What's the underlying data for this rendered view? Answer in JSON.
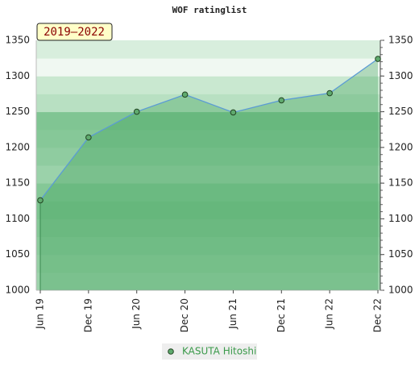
{
  "chart_data": {
    "type": "line",
    "title": "WOF ratinglist",
    "annotation": "2019–2022",
    "categories": [
      "Jun 19",
      "Dec 19",
      "Jun 20",
      "Dec 20",
      "Jun 21",
      "Dec 21",
      "Jun 22",
      "Dec 22"
    ],
    "series": [
      {
        "name": "KASUTA Hitoshi",
        "color": "#5b9bd5",
        "values": [
          1126,
          1214,
          1250,
          1274,
          1249,
          1266,
          1276,
          1324
        ]
      }
    ],
    "ylim": [
      1000,
      1350
    ],
    "yticks": [
      1000,
      1050,
      1100,
      1150,
      1200,
      1250,
      1300,
      1350
    ]
  }
}
